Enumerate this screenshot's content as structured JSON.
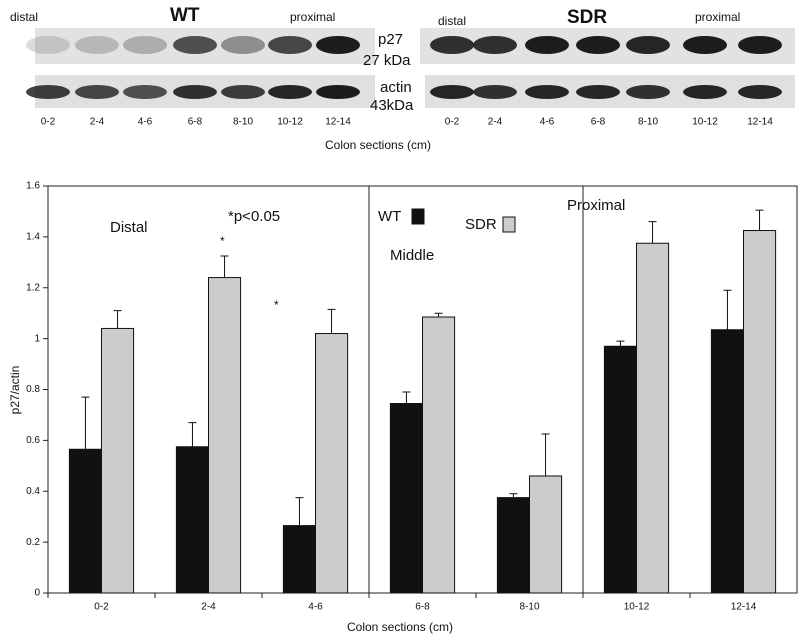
{
  "blot": {
    "wt": {
      "left": "distal",
      "title": "WT",
      "right": "proximal"
    },
    "sdr": {
      "left": "distal",
      "title": "SDR",
      "right": "proximal"
    },
    "p27": "p27",
    "p27_kda": "27  kDa",
    "actin": "actin",
    "actin_kda": "43kDa",
    "lanes": [
      "0-2",
      "2-4",
      "4-6",
      "6-8",
      "8-10",
      "10-12",
      "12-14"
    ],
    "xlabel": "Colon sections (cm)"
  },
  "chart_data": {
    "type": "bar",
    "ylabel": "p27/actin",
    "xlabel": "Colon sections (cm)",
    "categories": [
      "0-2",
      "2-4",
      "4-6",
      "6-8",
      "8-10",
      "10-12",
      "12-14"
    ],
    "series": [
      {
        "name": "WT",
        "color": "#111111",
        "values": [
          0.565,
          0.575,
          0.265,
          0.745,
          0.375,
          0.97,
          1.035
        ],
        "errors": [
          0.205,
          0.095,
          0.11,
          0.045,
          0.015,
          0.02,
          0.155
        ]
      },
      {
        "name": "SDR",
        "color": "#cccccc",
        "values": [
          1.04,
          1.24,
          1.02,
          1.085,
          0.46,
          1.375,
          1.425
        ],
        "errors": [
          0.07,
          0.085,
          0.095,
          0.015,
          0.165,
          0.085,
          0.08
        ]
      }
    ],
    "ylim": [
      0,
      1.6
    ],
    "yticks": [
      0,
      0.2,
      0.4,
      0.6,
      0.8,
      1,
      1.2,
      1.4,
      1.6
    ],
    "annotations": {
      "distal": "Distal",
      "pval": "*p<0.05",
      "star1": "*",
      "star2": "*",
      "middle": "Middle",
      "proximal": "Proximal"
    }
  }
}
